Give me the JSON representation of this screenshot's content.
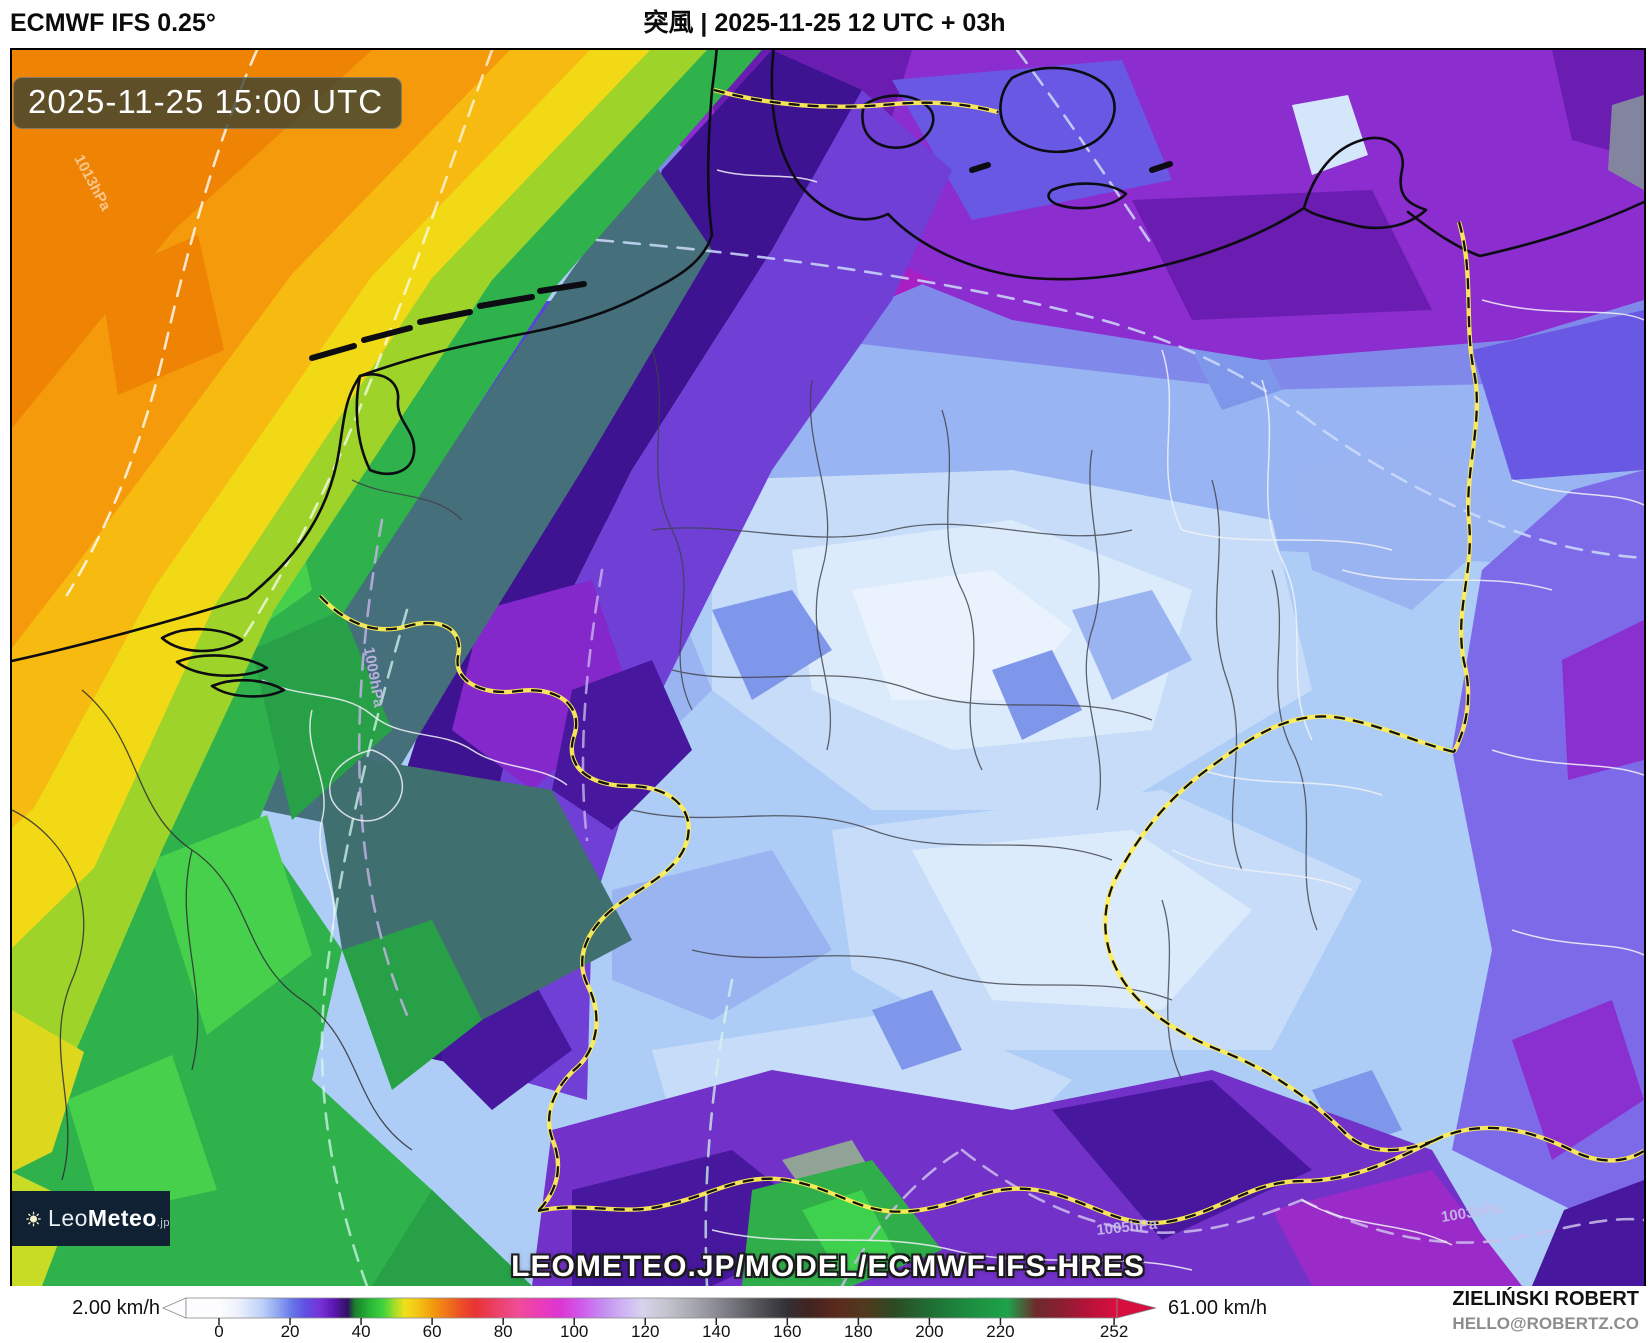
{
  "header": {
    "model_label": "ECMWF IFS 0.25°",
    "title": "突風 | 2025-11-25 12 UTC + 03h"
  },
  "map": {
    "timestamp": "2025-11-25 15:00 UTC",
    "watermark": "LEOMETEO.JP/MODEL/ECMWF-IFS-HRES",
    "logo": {
      "prefix": "Leo",
      "bold": "Meteo",
      "suffix": ".jp"
    },
    "isobar_labels": {
      "northwest": "1013hPa",
      "west": "1009hPa",
      "south": "1005hPa",
      "southeast": "1003hPa"
    }
  },
  "colorbar": {
    "min_label": "2.00 km/h",
    "max_label": "61.00 km/h",
    "unit": "km/h",
    "ticks": [
      "0",
      "20",
      "40",
      "60",
      "80",
      "100",
      "120",
      "140",
      "160",
      "180",
      "200",
      "220",
      "252"
    ],
    "gradient": [
      {
        "v": 0,
        "c": "#fdfdff"
      },
      {
        "v": 6,
        "c": "#e8eefc"
      },
      {
        "v": 12,
        "c": "#bcd0f7"
      },
      {
        "v": 16,
        "c": "#93a9f1"
      },
      {
        "v": 20,
        "c": "#6a79ea"
      },
      {
        "v": 24,
        "c": "#5e50e2"
      },
      {
        "v": 28,
        "c": "#7634d8"
      },
      {
        "v": 32,
        "c": "#5c17b4"
      },
      {
        "v": 36,
        "c": "#2d1260"
      },
      {
        "v": 38,
        "c": "#1b7d2a"
      },
      {
        "v": 42,
        "c": "#27b437"
      },
      {
        "v": 46,
        "c": "#3fd33f"
      },
      {
        "v": 49,
        "c": "#9edc28"
      },
      {
        "v": 52,
        "c": "#eee01c"
      },
      {
        "v": 56,
        "c": "#f4c115"
      },
      {
        "v": 60,
        "c": "#f39a0d"
      },
      {
        "v": 64,
        "c": "#f0751c"
      },
      {
        "v": 68,
        "c": "#ec4f26"
      },
      {
        "v": 72,
        "c": "#e93336"
      },
      {
        "v": 78,
        "c": "#ec4168"
      },
      {
        "v": 84,
        "c": "#f04d96"
      },
      {
        "v": 90,
        "c": "#ec3cb8"
      },
      {
        "v": 96,
        "c": "#dc35d2"
      },
      {
        "v": 102,
        "c": "#cf5bee"
      },
      {
        "v": 108,
        "c": "#c48ef0"
      },
      {
        "v": 114,
        "c": "#cfb5f3"
      },
      {
        "v": 119,
        "c": "#d9d2ee"
      },
      {
        "v": 126,
        "c": "#c3c4cd"
      },
      {
        "v": 135,
        "c": "#9fa0a9"
      },
      {
        "v": 144,
        "c": "#77787f"
      },
      {
        "v": 152,
        "c": "#525158"
      },
      {
        "v": 160,
        "c": "#323035"
      },
      {
        "v": 166,
        "c": "#41231f"
      },
      {
        "v": 174,
        "c": "#5c2a1e"
      },
      {
        "v": 182,
        "c": "#4f3a1c"
      },
      {
        "v": 190,
        "c": "#2c4a24"
      },
      {
        "v": 200,
        "c": "#1e6e34"
      },
      {
        "v": 212,
        "c": "#1d8f41"
      },
      {
        "v": 222,
        "c": "#1fa24b"
      },
      {
        "v": 230,
        "c": "#6d2a2c"
      },
      {
        "v": 238,
        "c": "#8f1c33"
      },
      {
        "v": 245,
        "c": "#b8123a"
      },
      {
        "v": 252,
        "c": "#d60f3f"
      }
    ]
  },
  "credits": {
    "author": "ZIELIŃSKI ROBERT",
    "contact": "HELLO@ROBERTZ.CO"
  }
}
